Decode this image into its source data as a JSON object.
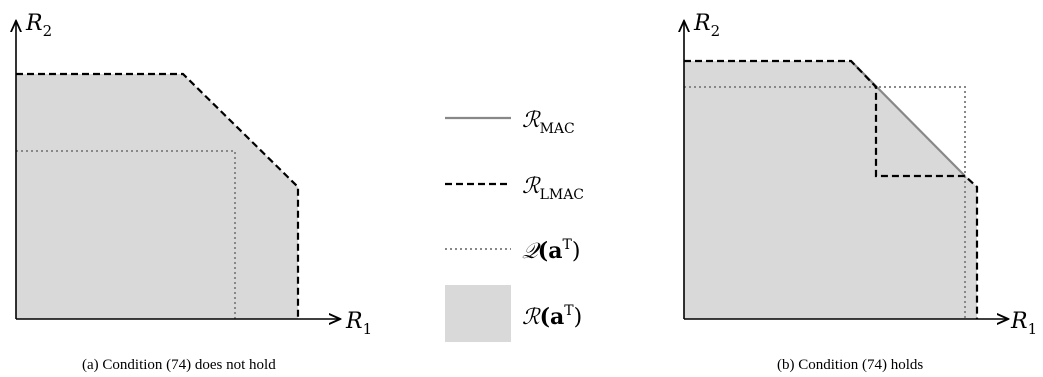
{
  "panel_a": {
    "y_axis_label": "R",
    "y_axis_sub": "2",
    "x_axis_label": "R",
    "x_axis_sub": "1",
    "caption": "(a) Condition (74) does not hold"
  },
  "panel_b": {
    "y_axis_label": "R",
    "y_axis_sub": "2",
    "x_axis_label": "R",
    "x_axis_sub": "1",
    "caption": "(b) Condition (74) holds"
  },
  "legend": {
    "mac": {
      "symbol": "ℛ",
      "sub": "MAC",
      "line_color": "#888888"
    },
    "lmac": {
      "symbol": "ℛ",
      "sub": "LMAC",
      "line_color": "#000000"
    },
    "q": {
      "symbol": "𝒬",
      "arg": "(a",
      "sup": "T",
      "close": ")",
      "line_color": "#888888"
    },
    "r": {
      "symbol": "ℛ",
      "arg": "(a",
      "sup": "T",
      "close": ")",
      "fill_color": "#d9d9d9"
    }
  }
}
